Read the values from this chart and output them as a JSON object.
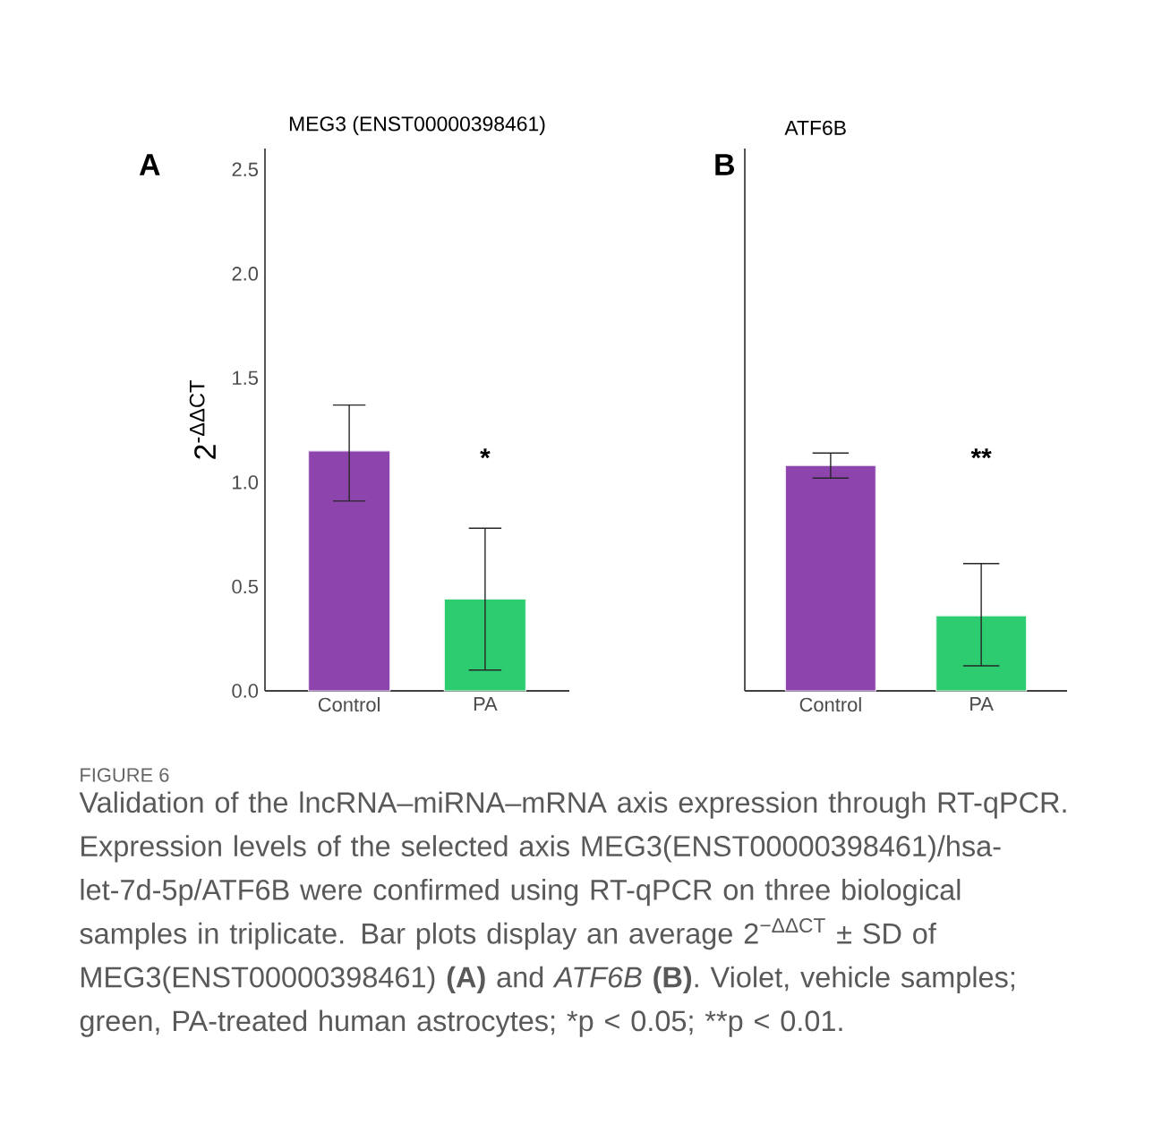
{
  "chart_data": [
    {
      "type": "bar",
      "title": "MEG3 (ENST00000398461)",
      "ylabel": "2$^{-ΔΔCT}$",
      "categories": [
        "Control",
        "PA"
      ],
      "values": [
        1.15,
        0.44
      ],
      "colors": [
        "#8e44ad",
        "#2ecc71"
      ],
      "errors": [
        [
          0.91,
          1.37
        ],
        [
          0.1,
          0.78
        ]
      ],
      "ylim": [
        0,
        2.6
      ],
      "yticks": [
        {
          "value": 0,
          "label": "0.0"
        },
        {
          "value": 0.5,
          "label": "0.5"
        },
        {
          "value": 1,
          "label": "1.0"
        },
        {
          "value": 1.5,
          "label": "1.5"
        },
        {
          "value": 2,
          "label": "2.0"
        },
        {
          "value": 2.5,
          "label": "2.5"
        }
      ],
      "annotations": [
        "A",
        "FIGURE 6",
        "Validation of the lncRNA–miRNA–mRNA axis expression through RT-qPCR. Expression levels of the selected axis MEG3(ENST00000398461)/hsa-let-7d-5p/ATF6B were confirmed using RT-qPCR on three biological samples in triplicate. Bar plots display an average 2$^{−ΔΔCT}$ ± SD of MEG3(ENST00000398461) **(A)** and *ATF6B* **(B)**. Violet, vehicle samples; green, PA-treated human astrocytes;",
        "*p < 0.05;",
        "**p < 0.01.",
        "*"
      ]
    },
    {
      "type": "bar",
      "title": "ATF6B",
      "categories": [
        "Control",
        "PA"
      ],
      "values": [
        1.08,
        0.36
      ],
      "colors": [
        "#8e44ad",
        "#2ecc71"
      ],
      "errors": [
        [
          1.02,
          1.14
        ],
        [
          0.12,
          0.61
        ]
      ],
      "ylim": [
        0,
        2.6
      ],
      "tick_labels": "x",
      "annotations": [
        "B",
        "**"
      ]
    }
  ]
}
